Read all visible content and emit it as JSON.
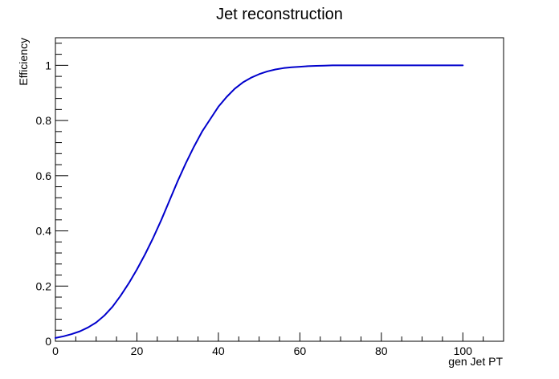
{
  "chart_data": {
    "type": "line",
    "title": "Jet reconstruction",
    "xlabel": "gen Jet PT",
    "ylabel": "Efficiency",
    "xlim": [
      0,
      110
    ],
    "ylim": [
      0,
      1.1
    ],
    "x_ticks": [
      "0",
      "20",
      "40",
      "60",
      "80",
      "100"
    ],
    "y_ticks": [
      "0",
      "0.2",
      "0.4",
      "0.6",
      "0.8",
      "1"
    ],
    "grid": false,
    "line_color": "#0000cc",
    "series": [
      {
        "x": [
          0,
          2,
          4,
          6,
          8,
          10,
          12,
          14,
          16,
          18,
          20,
          22,
          24,
          26,
          28,
          30,
          32,
          34,
          36,
          38,
          40,
          42,
          44,
          46,
          48,
          50,
          52,
          54,
          56,
          58,
          60,
          62,
          64,
          66,
          68,
          70,
          75,
          80,
          85,
          90,
          95,
          100
        ],
        "y": [
          0.012,
          0.018,
          0.026,
          0.036,
          0.05,
          0.068,
          0.093,
          0.125,
          0.165,
          0.21,
          0.26,
          0.315,
          0.375,
          0.44,
          0.51,
          0.58,
          0.645,
          0.705,
          0.76,
          0.805,
          0.85,
          0.885,
          0.915,
          0.938,
          0.955,
          0.968,
          0.978,
          0.985,
          0.99,
          0.993,
          0.995,
          0.997,
          0.998,
          0.999,
          1.0,
          1.0,
          1.0,
          1.0,
          1.0,
          1.0,
          1.0,
          1.0
        ]
      }
    ]
  }
}
